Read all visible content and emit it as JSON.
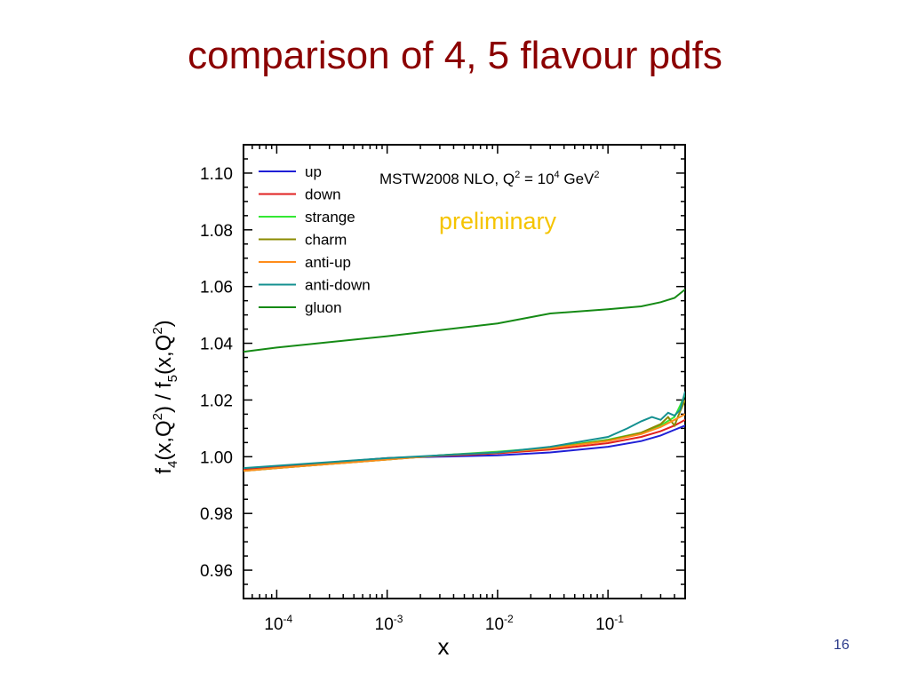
{
  "slide": {
    "title": "comparison of 4, 5 flavour pdfs",
    "page_number": "16"
  },
  "chart_data": {
    "type": "line",
    "title": "",
    "annotation": "MSTW2008 NLO, Q² = 10⁴ GeV²",
    "annotation_parts": {
      "base": "MSTW2008 NLO, Q",
      "q_exp": "2",
      "mid": " = 10",
      "mid_exp": "4",
      "unit": " GeV",
      "unit_exp": "2"
    },
    "watermark": "preliminary",
    "watermark_color": "#f5c400",
    "xlabel": "x",
    "ylabel": "f₄(x,Q²) / f₅(x,Q²)",
    "ylabel_parts": [
      "f",
      "4",
      "(x,Q",
      "2",
      ") / f",
      "5",
      "(x,Q",
      "2",
      ")"
    ],
    "x_scale": "log",
    "xlim": [
      5e-05,
      0.5
    ],
    "ylim": [
      0.95,
      1.11
    ],
    "x_ticks": [
      {
        "value": 0.0001,
        "base": "10",
        "exp": "-4"
      },
      {
        "value": 0.001,
        "base": "10",
        "exp": "-3"
      },
      {
        "value": 0.01,
        "base": "10",
        "exp": "-2"
      },
      {
        "value": 0.1,
        "base": "10",
        "exp": "-1"
      }
    ],
    "y_ticks": [
      {
        "value": 0.96,
        "label": "0.96"
      },
      {
        "value": 0.98,
        "label": "0.98"
      },
      {
        "value": 1.0,
        "label": "1.00"
      },
      {
        "value": 1.02,
        "label": "1.02"
      },
      {
        "value": 1.04,
        "label": "1.04"
      },
      {
        "value": 1.06,
        "label": "1.06"
      },
      {
        "value": 1.08,
        "label": "1.08"
      },
      {
        "value": 1.1,
        "label": "1.10"
      }
    ],
    "grid": false,
    "legend_position": "top-left",
    "series": [
      {
        "name": "up",
        "color": "#1f1fd6",
        "x": [
          5e-05,
          0.0001,
          0.001,
          0.003,
          0.01,
          0.03,
          0.1,
          0.2,
          0.3,
          0.4,
          0.5
        ],
        "y": [
          0.9955,
          0.9965,
          0.9995,
          1.0,
          1.0005,
          1.0015,
          1.0035,
          1.0055,
          1.0075,
          1.0095,
          1.011
        ]
      },
      {
        "name": "down",
        "color": "#e02020",
        "x": [
          5e-05,
          0.0001,
          0.001,
          0.003,
          0.01,
          0.03,
          0.1,
          0.2,
          0.3,
          0.4,
          0.5
        ],
        "y": [
          0.9955,
          0.9965,
          0.9995,
          1.0003,
          1.0012,
          1.0025,
          1.0048,
          1.007,
          1.009,
          1.011,
          1.013
        ]
      },
      {
        "name": "strange",
        "color": "#33e833",
        "x": [
          5e-05,
          0.0001,
          0.001,
          0.003,
          0.01,
          0.03,
          0.1,
          0.2,
          0.3,
          0.4,
          0.45,
          0.5
        ],
        "y": [
          0.995,
          0.996,
          0.999,
          1.0005,
          1.0018,
          1.0032,
          1.006,
          1.0085,
          1.011,
          1.014,
          1.018,
          1.022
        ]
      },
      {
        "name": "charm",
        "color": "#8b8b00",
        "x": [
          5e-05,
          0.0001,
          0.001,
          0.003,
          0.01,
          0.03,
          0.1,
          0.2,
          0.3,
          0.35,
          0.4,
          0.45,
          0.5
        ],
        "y": [
          0.995,
          0.996,
          0.999,
          1.0005,
          1.0015,
          1.003,
          1.0058,
          1.0085,
          1.0115,
          1.014,
          1.011,
          1.016,
          1.02
        ]
      },
      {
        "name": "anti-up",
        "color": "#ff8c1a",
        "x": [
          5e-05,
          0.0001,
          0.001,
          0.003,
          0.01,
          0.03,
          0.1,
          0.2,
          0.3,
          0.4,
          0.5
        ],
        "y": [
          0.995,
          0.996,
          0.999,
          1.0004,
          1.0015,
          1.003,
          1.0055,
          1.008,
          1.0105,
          1.013,
          1.015
        ]
      },
      {
        "name": "anti-down",
        "color": "#149090",
        "x": [
          5e-05,
          0.0001,
          0.001,
          0.003,
          0.01,
          0.03,
          0.1,
          0.15,
          0.2,
          0.25,
          0.3,
          0.35,
          0.4,
          0.45,
          0.5
        ],
        "y": [
          0.996,
          0.9968,
          0.9995,
          1.0005,
          1.0015,
          1.0035,
          1.007,
          1.01,
          1.0125,
          1.014,
          1.013,
          1.0155,
          1.0145,
          1.0165,
          1.023
        ]
      },
      {
        "name": "gluon",
        "color": "#158a15",
        "x": [
          5e-05,
          0.0001,
          0.001,
          0.01,
          0.03,
          0.1,
          0.2,
          0.3,
          0.4,
          0.5
        ],
        "y": [
          1.037,
          1.0385,
          1.0425,
          1.047,
          1.0505,
          1.052,
          1.053,
          1.0545,
          1.056,
          1.059
        ]
      }
    ]
  }
}
